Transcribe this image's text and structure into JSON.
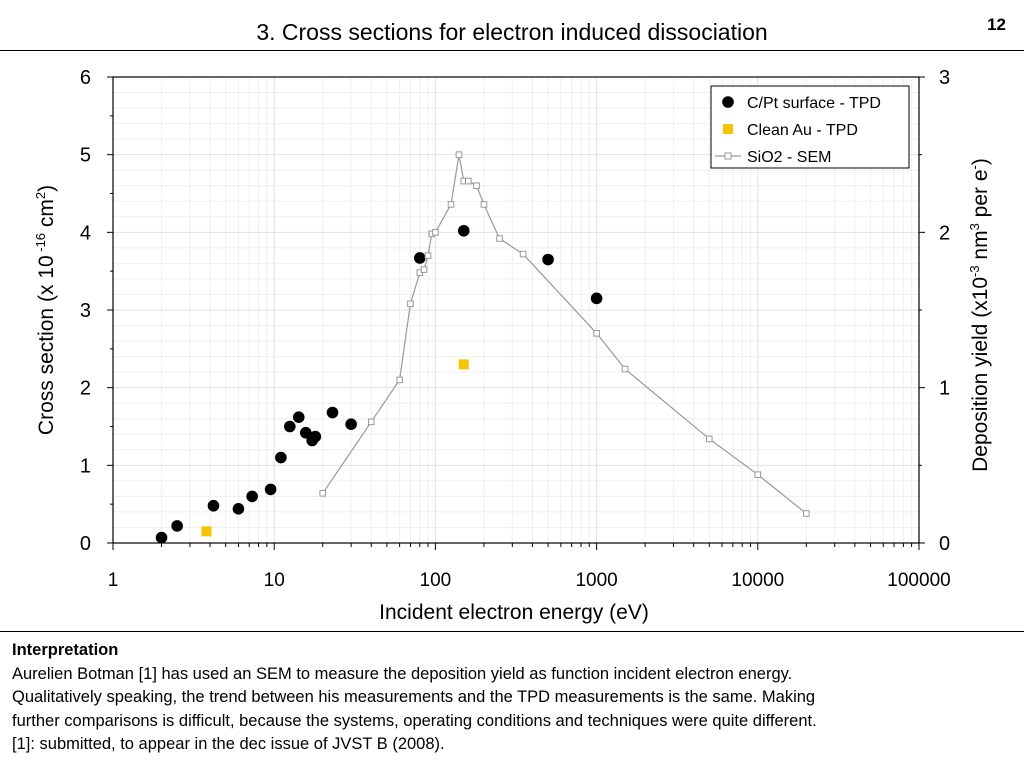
{
  "slide": {
    "title": "3. Cross sections for electron induced dissociation",
    "page_number": "12"
  },
  "chart_data": {
    "type": "scatter",
    "x_scale": "log",
    "xlabel": "Incident electron energy (eV)",
    "xlim": [
      1,
      100000
    ],
    "x_ticks": [
      {
        "value": 1,
        "label": "1"
      },
      {
        "value": 10,
        "label": "10"
      },
      {
        "value": 100,
        "label": "100"
      },
      {
        "value": 1000,
        "label": "1000"
      },
      {
        "value": 10000,
        "label": "10000"
      },
      {
        "value": 100000,
        "label": "100000"
      }
    ],
    "y_left": {
      "label_parts": {
        "pre": "Cross section (x 10",
        "sup1": " -16",
        "mid": " cm",
        "sup2": "2",
        "post": ")"
      },
      "lim": [
        0,
        6
      ],
      "ticks": [
        "0",
        "1",
        "2",
        "3",
        "4",
        "5",
        "6"
      ]
    },
    "y_right": {
      "label_parts": {
        "pre": "Deposition yield (x10",
        "sup1": "-3",
        "mid": " nm",
        "sup2": "3",
        "post1": " per e",
        "sup3": "-",
        "post2": ")"
      },
      "lim": [
        0,
        3
      ],
      "ticks": [
        "0",
        "1",
        "2",
        "3"
      ]
    },
    "grid": true,
    "legend_position": "top-right",
    "series": [
      {
        "name": "C/Pt surface - TPD",
        "axis": "left",
        "marker": "circle",
        "color": "#000000",
        "points": [
          [
            2.0,
            0.07
          ],
          [
            2.5,
            0.22
          ],
          [
            4.2,
            0.48
          ],
          [
            6.0,
            0.44
          ],
          [
            7.3,
            0.6
          ],
          [
            9.5,
            0.69
          ],
          [
            11,
            1.1
          ],
          [
            12.5,
            1.5
          ],
          [
            14.2,
            1.62
          ],
          [
            15.7,
            1.42
          ],
          [
            17.2,
            1.32
          ],
          [
            18,
            1.37
          ],
          [
            23,
            1.68
          ],
          [
            30,
            1.53
          ],
          [
            80,
            3.67
          ],
          [
            150,
            4.02
          ],
          [
            500,
            3.65
          ],
          [
            1000,
            3.15
          ]
        ]
      },
      {
        "name": "Clean Au - TPD",
        "axis": "left",
        "marker": "square",
        "color": "#f5c400",
        "points": [
          [
            3.8,
            0.15
          ],
          [
            150,
            2.3
          ]
        ]
      },
      {
        "name": "SiO2 - SEM",
        "axis": "right",
        "marker": "open-square-line",
        "color": "#999999",
        "points": [
          [
            20,
            0.32
          ],
          [
            40,
            0.78
          ],
          [
            60,
            1.05
          ],
          [
            70,
            1.54
          ],
          [
            80,
            1.74
          ],
          [
            85,
            1.76
          ],
          [
            90,
            1.85
          ],
          [
            95,
            1.99
          ],
          [
            100,
            2.0
          ],
          [
            125,
            2.18
          ],
          [
            140,
            2.5
          ],
          [
            150,
            2.33
          ],
          [
            160,
            2.33
          ],
          [
            180,
            2.3
          ],
          [
            200,
            2.18
          ],
          [
            250,
            1.96
          ],
          [
            350,
            1.86
          ],
          [
            1000,
            1.35
          ],
          [
            1500,
            1.12
          ],
          [
            5000,
            0.67
          ],
          [
            10000,
            0.44
          ],
          [
            20000,
            0.19
          ]
        ]
      }
    ]
  },
  "notes": {
    "heading": "Interpretation",
    "lines": [
      "Aurelien Botman [1] has used an SEM to measure the deposition yield as function incident electron energy.",
      "Qualitatively speaking, the trend between his measurements and the TPD measurements is the same. Making",
      "further comparisons is difficult, because the systems, operating conditions and techniques were quite different.",
      "[1]: submitted, to appear in the dec issue of JVST B (2008)."
    ]
  }
}
